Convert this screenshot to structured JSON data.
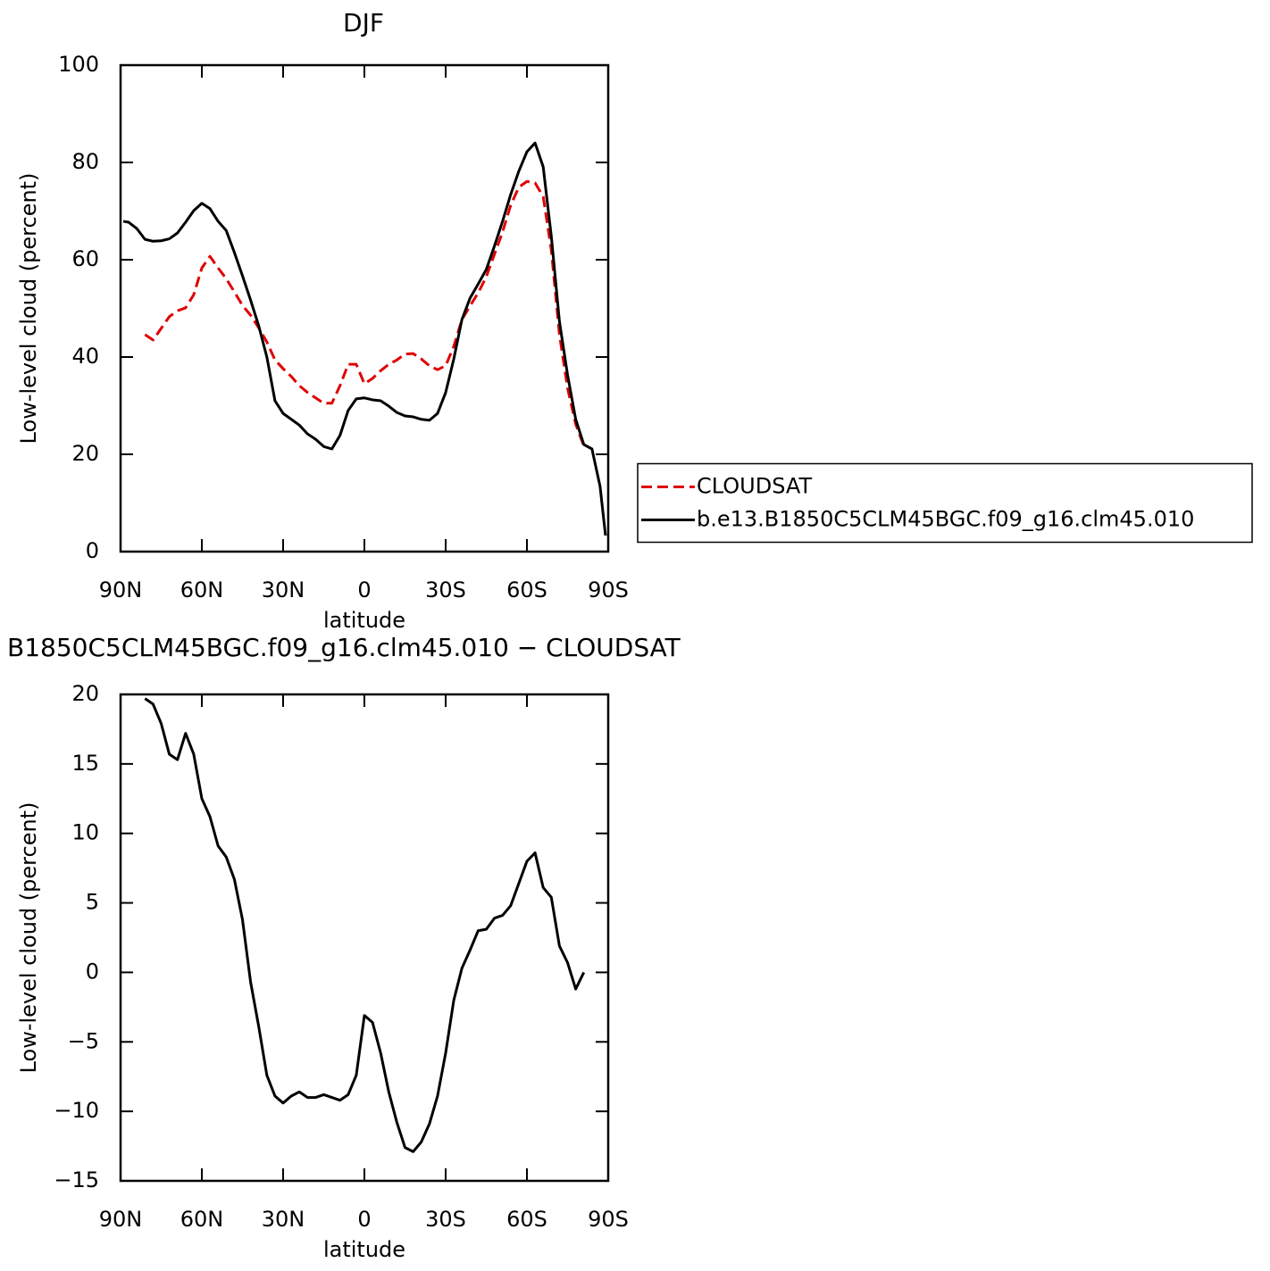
{
  "chart_data": [
    {
      "type": "line",
      "title": "DJF",
      "xlabel": "latitude",
      "ylabel": "Low-level cloud (percent)",
      "x": [
        89,
        87,
        84,
        81,
        78,
        75,
        72,
        69,
        66,
        63,
        60,
        57,
        54,
        51,
        48,
        45,
        42,
        39,
        36,
        33,
        30,
        27,
        24,
        21,
        18,
        15,
        12,
        9,
        6,
        3,
        0,
        -3,
        -6,
        -9,
        -12,
        -15,
        -18,
        -21,
        -24,
        -27,
        -30,
        -33,
        -36,
        -39,
        -42,
        -45,
        -48,
        -51,
        -54,
        -57,
        -60,
        -63,
        -66,
        -69,
        -72,
        -75,
        -78,
        -81,
        -84,
        -87,
        -89
      ],
      "xlim": [
        90,
        -90
      ],
      "xticks": [
        {
          "value": 90,
          "label": "90N"
        },
        {
          "value": 60,
          "label": "60N"
        },
        {
          "value": 30,
          "label": "30N"
        },
        0,
        {
          "value": -30,
          "label": "30S"
        },
        {
          "value": -60,
          "label": "60S"
        },
        {
          "value": -90,
          "label": "90S"
        }
      ],
      "ylim": [
        0,
        100
      ],
      "yticks": [
        0,
        20,
        40,
        60,
        80,
        100
      ],
      "legend": "right",
      "series": [
        {
          "name": "CLOUDSAT",
          "color": "#e00000",
          "dashed": true,
          "values": [
            null,
            null,
            null,
            44.6,
            43.5,
            45.9,
            48.3,
            49.5,
            50.1,
            52.8,
            58.3,
            60.7,
            58.3,
            56.1,
            53.4,
            50.6,
            48.6,
            46,
            43.1,
            39.4,
            37.6,
            36,
            34.1,
            32.7,
            31.6,
            30.5,
            30.5,
            34.1,
            38.5,
            38.5,
            34.5,
            35.6,
            37.2,
            38.5,
            39.4,
            40.6,
            40.7,
            39.6,
            38.2,
            37.4,
            38.2,
            42.2,
            47.7,
            50.5,
            53.2,
            56.5,
            61.1,
            65.7,
            71.2,
            74.9,
            76.1,
            75.8,
            73,
            62,
            44.6,
            33.6,
            26.2,
            21.7,
            null,
            null,
            null
          ]
        },
        {
          "name": "b.e13.B1850C5CLM45BGC.f09_g16.clm45.010",
          "color": "#000000",
          "dashed": false,
          "values": [
            67.9,
            67.7,
            66.4,
            64.2,
            63.8,
            63.9,
            64.3,
            65.5,
            67.7,
            70.1,
            71.6,
            70.5,
            67.9,
            66,
            61.5,
            56.7,
            51.7,
            46.4,
            40,
            31,
            28.4,
            27.2,
            26,
            24.2,
            23.1,
            21.6,
            21.1,
            23.9,
            29,
            31.4,
            31.6,
            31.2,
            31,
            29.9,
            28.6,
            27.9,
            27.7,
            27.2,
            27,
            28.4,
            32.7,
            39.6,
            47.7,
            52.1,
            55,
            58,
            62.8,
            67.9,
            73.4,
            78.2,
            82.2,
            84,
            79.1,
            64.8,
            47.3,
            36.3,
            27.2,
            22,
            21.1,
            13.4,
            3.3
          ]
        }
      ]
    },
    {
      "type": "line",
      "title": "B1850C5CLM45BGC.f09_g16.clm45.010 − CLOUDSAT",
      "xlabel": "latitude",
      "ylabel": "Low-level cloud (percent)",
      "x": [
        81,
        78,
        75,
        72,
        69,
        66,
        63,
        60,
        57,
        54,
        51,
        48,
        45,
        42,
        39,
        36,
        33,
        30,
        27,
        24,
        21,
        18,
        15,
        12,
        9,
        6,
        3,
        0,
        -3,
        -6,
        -9,
        -12,
        -15,
        -18,
        -21,
        -24,
        -27,
        -30,
        -33,
        -36,
        -39,
        -42,
        -45,
        -48,
        -51,
        -54,
        -57,
        -60,
        -63,
        -66,
        -69,
        -72,
        -75,
        -78,
        -81
      ],
      "xlim": [
        90,
        -90
      ],
      "xticks": [
        {
          "value": 90,
          "label": "90N"
        },
        {
          "value": 60,
          "label": "60N"
        },
        {
          "value": 30,
          "label": "30N"
        },
        0,
        {
          "value": -30,
          "label": "30S"
        },
        {
          "value": -60,
          "label": "60S"
        },
        {
          "value": -90,
          "label": "90S"
        }
      ],
      "ylim": [
        -15,
        20
      ],
      "yticks": [
        {
          "value": -15,
          "label": "−15"
        },
        {
          "value": -10,
          "label": "−10"
        },
        {
          "value": -5,
          "label": "−5"
        },
        0,
        5,
        10,
        15,
        20
      ],
      "series": [
        {
          "color": "#000000",
          "dashed": false,
          "values": [
            19.7,
            19.3,
            17.9,
            15.7,
            15.3,
            17.2,
            15.7,
            12.5,
            11.2,
            9.1,
            8.3,
            6.7,
            3.8,
            -0.7,
            -3.9,
            -7.4,
            -8.9,
            -9.4,
            -8.9,
            -8.6,
            -9,
            -9,
            -8.8,
            -9,
            -9.2,
            -8.8,
            -7.4,
            -3.1,
            -3.6,
            -5.8,
            -8.6,
            -10.8,
            -12.6,
            -12.9,
            -12.2,
            -10.9,
            -8.9,
            -5.8,
            -2,
            0.3,
            1.6,
            3,
            3.1,
            3.9,
            4.1,
            4.8,
            6.4,
            8,
            8.6,
            6.1,
            5.4,
            1.9,
            0.7,
            -1.2,
            0
          ]
        }
      ]
    }
  ]
}
